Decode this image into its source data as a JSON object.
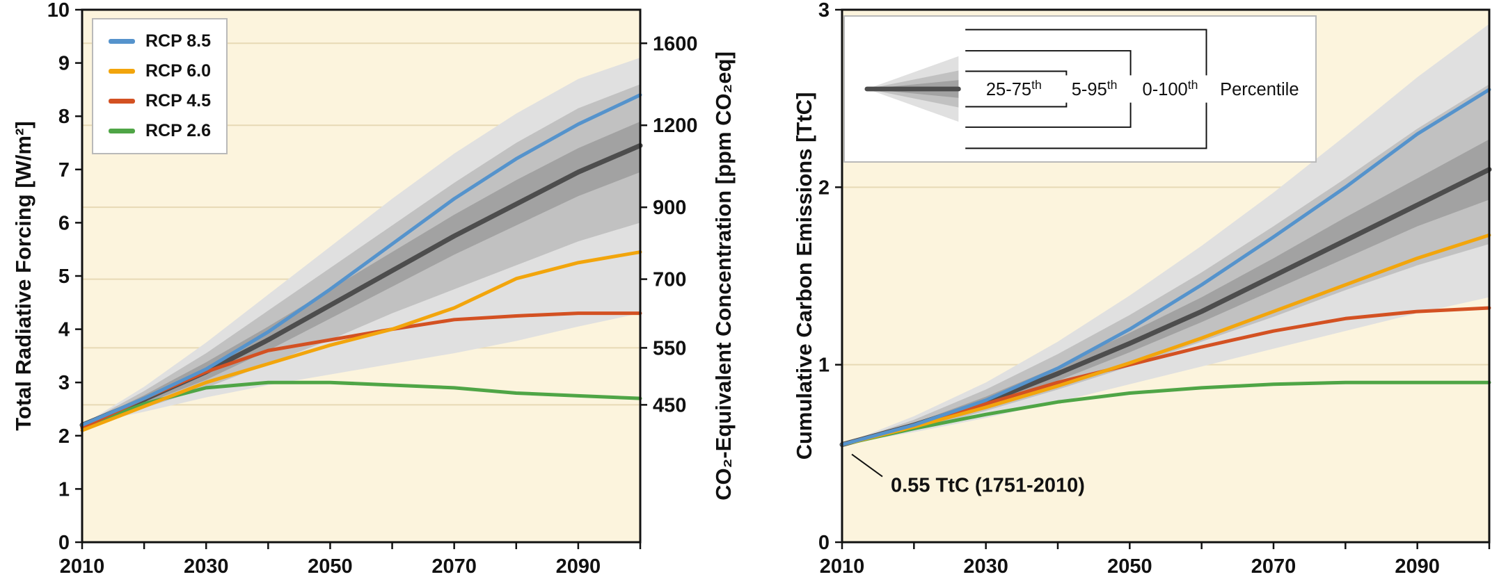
{
  "colors": {
    "plot_bg": "#fcf4dd",
    "gridline": "#e7d9b5",
    "frame": "#111111",
    "text": "#111111",
    "median": "#4d4d4d",
    "band_0_100": "#e0e0e0",
    "band_5_95": "#c1c1c1",
    "band_25_75": "#a2a2a2",
    "rcp85": "#5593cc",
    "rcp60": "#f2a50c",
    "rcp45": "#d35122",
    "rcp26": "#4fa546"
  },
  "panels": {
    "left": {
      "y_axis_title": "Total Radiative Forcing [W/m²]",
      "y2_axis_title": "CO₂-Equivalent Concentration [ppm CO₂eq]",
      "legend": {
        "items": [
          {
            "label": "RCP 8.5",
            "color": "#5593cc"
          },
          {
            "label": "RCP 6.0",
            "color": "#f2a50c"
          },
          {
            "label": "RCP 4.5",
            "color": "#d35122"
          },
          {
            "label": "RCP 2.6",
            "color": "#4fa546"
          }
        ]
      }
    },
    "right": {
      "y_axis_title": "Cumulative Carbon Emissions [TtC]",
      "annotation": {
        "text": "0.55 TtC (1751-2010)",
        "year": 2010,
        "value": 0.55
      },
      "legend": {
        "ranges": [
          {
            "label": "25-75",
            "sup": "th"
          },
          {
            "label": "5-95",
            "sup": "th"
          },
          {
            "label": "0-100",
            "sup": "th"
          }
        ],
        "title": "Percentile"
      }
    }
  },
  "chart_data": [
    {
      "type": "line",
      "panel": "left",
      "ylabel": "Total Radiative Forcing [W/m²]",
      "y2label": "CO₂-Equivalent Concentration [ppm CO₂eq]",
      "xlim": [
        2010,
        2100
      ],
      "ylim": [
        0,
        10
      ],
      "x": [
        2010,
        2020,
        2030,
        2040,
        2050,
        2060,
        2070,
        2080,
        2090,
        2100
      ],
      "x_tick_years": [
        2010,
        2020,
        2030,
        2040,
        2050,
        2060,
        2070,
        2080,
        2090,
        2100
      ],
      "x_label_years": [
        2010,
        2030,
        2050,
        2070,
        2090
      ],
      "y_ticks": [
        0,
        1,
        2,
        3,
        4,
        5,
        6,
        7,
        8,
        9,
        10
      ],
      "y2_ticks": [
        {
          "label": "450",
          "value": 2.58
        },
        {
          "label": "550",
          "value": 3.65
        },
        {
          "label": "700",
          "value": 4.94
        },
        {
          "label": "900",
          "value": 6.29
        },
        {
          "label": "1200",
          "value": 7.83
        },
        {
          "label": "1600",
          "value": 9.37
        }
      ],
      "gridlines_y": [
        2.58,
        3.65,
        4.94,
        6.29,
        7.83,
        9.37
      ],
      "bands": [
        {
          "name": "0-100th percentile",
          "color": "#e0e0e0",
          "lower": [
            2.2,
            2.45,
            2.72,
            2.95,
            3.15,
            3.35,
            3.55,
            3.78,
            4.05,
            4.3
          ],
          "upper": [
            2.2,
            2.92,
            3.75,
            4.65,
            5.55,
            6.45,
            7.3,
            8.05,
            8.7,
            9.1
          ]
        },
        {
          "name": "5-95th percentile",
          "color": "#c1c1c1",
          "lower": [
            2.2,
            2.52,
            2.9,
            3.35,
            3.8,
            4.3,
            4.75,
            5.2,
            5.65,
            6.0
          ],
          "upper": [
            2.2,
            2.84,
            3.55,
            4.35,
            5.15,
            5.95,
            6.75,
            7.5,
            8.15,
            8.6
          ]
        },
        {
          "name": "25-75th percentile",
          "color": "#a2a2a2",
          "lower": [
            2.2,
            2.6,
            3.05,
            3.6,
            4.2,
            4.8,
            5.4,
            5.95,
            6.5,
            6.95
          ],
          "upper": [
            2.2,
            2.76,
            3.38,
            4.05,
            4.75,
            5.45,
            6.15,
            6.8,
            7.4,
            7.9
          ]
        }
      ],
      "series": [
        {
          "name": "Median",
          "color": "#4d4d4d",
          "width": 7,
          "values": [
            2.2,
            2.68,
            3.2,
            3.8,
            4.45,
            5.1,
            5.75,
            6.35,
            6.95,
            7.45
          ]
        },
        {
          "name": "RCP 2.6",
          "color": "#4fa546",
          "width": 5,
          "values": [
            2.15,
            2.6,
            2.9,
            3.0,
            3.0,
            2.95,
            2.9,
            2.8,
            2.75,
            2.7
          ]
        },
        {
          "name": "RCP 4.5",
          "color": "#d35122",
          "width": 5,
          "values": [
            2.15,
            2.7,
            3.2,
            3.6,
            3.8,
            4.0,
            4.18,
            4.25,
            4.3,
            4.3
          ]
        },
        {
          "name": "RCP 6.0",
          "color": "#f2a50c",
          "width": 5,
          "values": [
            2.1,
            2.55,
            3.0,
            3.35,
            3.7,
            4.0,
            4.4,
            4.95,
            5.25,
            5.45
          ]
        },
        {
          "name": "RCP 8.5",
          "color": "#5593cc",
          "width": 5,
          "values": [
            2.2,
            2.7,
            3.25,
            3.95,
            4.75,
            5.6,
            6.45,
            7.2,
            7.85,
            8.4
          ]
        }
      ]
    },
    {
      "type": "line",
      "panel": "right",
      "ylabel": "Cumulative Carbon Emissions [TtC]",
      "xlim": [
        2010,
        2100
      ],
      "ylim": [
        0,
        3
      ],
      "x": [
        2010,
        2020,
        2030,
        2040,
        2050,
        2060,
        2070,
        2080,
        2090,
        2100
      ],
      "x_tick_years": [
        2010,
        2020,
        2030,
        2040,
        2050,
        2060,
        2070,
        2080,
        2090,
        2100
      ],
      "x_label_years": [
        2010,
        2030,
        2050,
        2070,
        2090
      ],
      "y_ticks": [
        0,
        1,
        2,
        3
      ],
      "gridlines_y": [
        1,
        2
      ],
      "bands": [
        {
          "name": "0-100th percentile",
          "color": "#e0e0e0",
          "lower": [
            0.55,
            0.62,
            0.7,
            0.79,
            0.89,
            0.99,
            1.09,
            1.19,
            1.29,
            1.38
          ],
          "upper": [
            0.55,
            0.71,
            0.9,
            1.13,
            1.39,
            1.67,
            1.97,
            2.29,
            2.62,
            2.92
          ]
        },
        {
          "name": "5-95th percentile",
          "color": "#c1c1c1",
          "lower": [
            0.55,
            0.63,
            0.74,
            0.86,
            0.99,
            1.13,
            1.27,
            1.42,
            1.56,
            1.68
          ],
          "upper": [
            0.55,
            0.69,
            0.86,
            1.06,
            1.28,
            1.52,
            1.78,
            2.05,
            2.33,
            2.58
          ]
        },
        {
          "name": "25-75th percentile",
          "color": "#a2a2a2",
          "lower": [
            0.55,
            0.65,
            0.77,
            0.91,
            1.07,
            1.24,
            1.42,
            1.6,
            1.78,
            1.93
          ],
          "upper": [
            0.55,
            0.67,
            0.82,
            0.99,
            1.18,
            1.38,
            1.6,
            1.83,
            2.05,
            2.27
          ]
        }
      ],
      "series": [
        {
          "name": "Median",
          "color": "#4d4d4d",
          "width": 7,
          "values": [
            0.55,
            0.66,
            0.79,
            0.95,
            1.12,
            1.3,
            1.5,
            1.7,
            1.9,
            2.1
          ]
        },
        {
          "name": "RCP 2.6",
          "color": "#4fa546",
          "width": 5,
          "values": [
            0.55,
            0.64,
            0.72,
            0.79,
            0.84,
            0.87,
            0.89,
            0.9,
            0.9,
            0.9
          ]
        },
        {
          "name": "RCP 4.5",
          "color": "#d35122",
          "width": 5,
          "values": [
            0.55,
            0.66,
            0.78,
            0.9,
            1.0,
            1.1,
            1.19,
            1.26,
            1.3,
            1.32
          ]
        },
        {
          "name": "RCP 6.0",
          "color": "#f2a50c",
          "width": 5,
          "values": [
            0.55,
            0.65,
            0.76,
            0.88,
            1.01,
            1.15,
            1.3,
            1.45,
            1.6,
            1.73
          ]
        },
        {
          "name": "RCP 8.5",
          "color": "#5593cc",
          "width": 5,
          "values": [
            0.55,
            0.66,
            0.8,
            0.98,
            1.2,
            1.45,
            1.72,
            2.0,
            2.3,
            2.55
          ]
        }
      ]
    }
  ]
}
